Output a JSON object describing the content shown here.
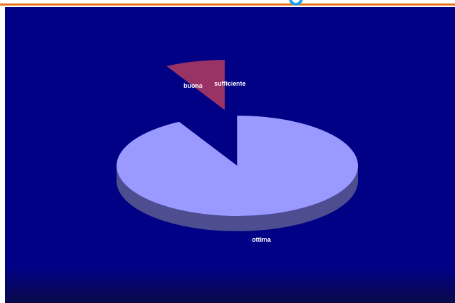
{
  "colors": {
    "background_top": "#010186",
    "background_bottom": "#0a0a4a",
    "accent_bar": "#e8721c",
    "slice_ottima": "#9999ff",
    "slice_ottima_side": "#4d4d8f",
    "slice_buona": "#993366",
    "slice_buona_side": "#4d1a33",
    "slice_sufficiente": "#ffffcc",
    "label_color": "#ffffff"
  },
  "chart_data": {
    "type": "pie",
    "style": "3d-exploded",
    "categories": [
      "ottima",
      "buona",
      "sufficiente"
    ],
    "values": [
      92,
      8,
      0
    ],
    "colors": [
      "#9999ff",
      "#993366",
      "#ffffcc"
    ],
    "legend": "none",
    "labels": {
      "ottima": "ottima",
      "buona": "buona",
      "sufficiente": "sufficiente"
    }
  }
}
